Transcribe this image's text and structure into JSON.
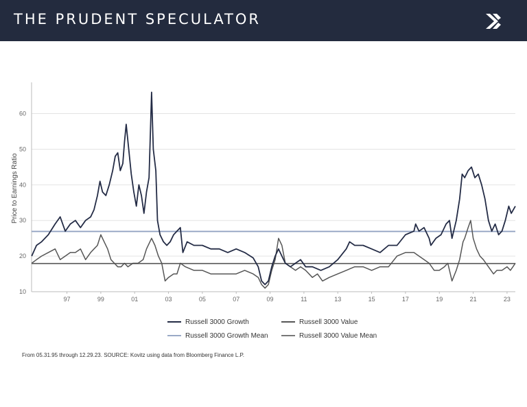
{
  "header": {
    "title": "THE PRUDENT SPECULATOR"
  },
  "logo": {
    "icon": "kovitz-logo-icon",
    "color": "#ffffff"
  },
  "footnote": "From 05.31.95 through 12.29.23. SOURCE: Kovitz using data from Bloomberg Finance L.P.",
  "colors": {
    "header_bg": "#232b3e",
    "growth": "#232b45",
    "growth_mean": "#9aa9c6",
    "value": "#555555",
    "value_mean": "#777777"
  },
  "chart_data": {
    "type": "line",
    "title": "",
    "ylabel": "Price to Earnings Ratio",
    "xlabel": "",
    "xlim": [
      1995.41,
      2023.99
    ],
    "ylim": [
      10,
      68
    ],
    "yticks": [
      10,
      20,
      30,
      40,
      50,
      60
    ],
    "xticks": [
      "97",
      "99",
      "01",
      "03",
      "05",
      "07",
      "09",
      "11",
      "13",
      "15",
      "17",
      "19",
      "21",
      "23"
    ],
    "grid": "horizontal",
    "legend_position": "bottom",
    "series": [
      {
        "name": "Russell 3000 Growth",
        "color": "#232b45",
        "points": [
          [
            1995.42,
            20
          ],
          [
            1995.7,
            23
          ],
          [
            1996.0,
            24
          ],
          [
            1996.4,
            26
          ],
          [
            1996.8,
            29
          ],
          [
            1997.1,
            31
          ],
          [
            1997.4,
            27
          ],
          [
            1997.7,
            29
          ],
          [
            1998.0,
            30
          ],
          [
            1998.3,
            28
          ],
          [
            1998.6,
            30
          ],
          [
            1998.9,
            31
          ],
          [
            1999.1,
            33
          ],
          [
            1999.3,
            37
          ],
          [
            1999.45,
            41
          ],
          [
            1999.6,
            38
          ],
          [
            1999.8,
            37
          ],
          [
            2000.0,
            40
          ],
          [
            2000.2,
            44
          ],
          [
            2000.35,
            48
          ],
          [
            2000.5,
            49
          ],
          [
            2000.65,
            44
          ],
          [
            2000.8,
            46
          ],
          [
            2000.9,
            52
          ],
          [
            2001.0,
            57
          ],
          [
            2001.15,
            50
          ],
          [
            2001.3,
            43
          ],
          [
            2001.45,
            38
          ],
          [
            2001.6,
            34
          ],
          [
            2001.75,
            40
          ],
          [
            2001.9,
            37
          ],
          [
            2002.05,
            32
          ],
          [
            2002.2,
            38
          ],
          [
            2002.35,
            42
          ],
          [
            2002.5,
            66
          ],
          [
            2002.6,
            50
          ],
          [
            2002.75,
            44
          ],
          [
            2002.85,
            30
          ],
          [
            2003.0,
            26
          ],
          [
            2003.2,
            24
          ],
          [
            2003.4,
            23
          ],
          [
            2003.6,
            24
          ],
          [
            2003.8,
            26
          ],
          [
            2004.0,
            27
          ],
          [
            2004.2,
            28
          ],
          [
            2004.35,
            21
          ],
          [
            2004.6,
            24
          ],
          [
            2005.0,
            23
          ],
          [
            2005.5,
            23
          ],
          [
            2006.0,
            22
          ],
          [
            2006.5,
            22
          ],
          [
            2007.0,
            21
          ],
          [
            2007.5,
            22
          ],
          [
            2008.0,
            21
          ],
          [
            2008.5,
            19.5
          ],
          [
            2008.8,
            17
          ],
          [
            2009.0,
            13
          ],
          [
            2009.2,
            12
          ],
          [
            2009.4,
            13
          ],
          [
            2009.6,
            17
          ],
          [
            2009.8,
            20
          ],
          [
            2010.0,
            22
          ],
          [
            2010.2,
            20
          ],
          [
            2010.4,
            18
          ],
          [
            2010.7,
            17
          ],
          [
            2011.0,
            18
          ],
          [
            2011.3,
            19
          ],
          [
            2011.6,
            17
          ],
          [
            2012.0,
            17
          ],
          [
            2012.5,
            16
          ],
          [
            2013.0,
            17
          ],
          [
            2013.5,
            19
          ],
          [
            2014.0,
            22
          ],
          [
            2014.2,
            24
          ],
          [
            2014.5,
            23
          ],
          [
            2015.0,
            23
          ],
          [
            2015.5,
            22
          ],
          [
            2016.0,
            21
          ],
          [
            2016.5,
            23
          ],
          [
            2017.0,
            23
          ],
          [
            2017.5,
            26
          ],
          [
            2018.0,
            27
          ],
          [
            2018.1,
            29
          ],
          [
            2018.3,
            27
          ],
          [
            2018.6,
            28
          ],
          [
            2018.9,
            25
          ],
          [
            2019.0,
            23
          ],
          [
            2019.3,
            25
          ],
          [
            2019.6,
            26
          ],
          [
            2019.9,
            29
          ],
          [
            2020.1,
            30
          ],
          [
            2020.25,
            25
          ],
          [
            2020.5,
            30
          ],
          [
            2020.7,
            36
          ],
          [
            2020.85,
            43
          ],
          [
            2021.0,
            42
          ],
          [
            2021.2,
            44
          ],
          [
            2021.4,
            45
          ],
          [
            2021.6,
            42
          ],
          [
            2021.8,
            43
          ],
          [
            2022.0,
            40
          ],
          [
            2022.2,
            36
          ],
          [
            2022.4,
            30
          ],
          [
            2022.6,
            27
          ],
          [
            2022.8,
            29
          ],
          [
            2023.0,
            26
          ],
          [
            2023.2,
            27
          ],
          [
            2023.4,
            30
          ],
          [
            2023.6,
            34
          ],
          [
            2023.75,
            32
          ],
          [
            2023.99,
            34
          ]
        ]
      },
      {
        "name": "Russell 3000 Value",
        "color": "#555555",
        "points": [
          [
            1995.42,
            18
          ],
          [
            1995.7,
            19
          ],
          [
            1996.0,
            20
          ],
          [
            1996.4,
            21
          ],
          [
            1996.8,
            22
          ],
          [
            1997.1,
            19
          ],
          [
            1997.4,
            20
          ],
          [
            1997.7,
            21
          ],
          [
            1998.0,
            21
          ],
          [
            1998.3,
            22
          ],
          [
            1998.6,
            19
          ],
          [
            1998.9,
            21
          ],
          [
            1999.1,
            22
          ],
          [
            1999.3,
            23
          ],
          [
            1999.5,
            26
          ],
          [
            1999.7,
            24
          ],
          [
            1999.9,
            22
          ],
          [
            2000.1,
            19
          ],
          [
            2000.3,
            18
          ],
          [
            2000.5,
            17
          ],
          [
            2000.7,
            17
          ],
          [
            2000.9,
            18
          ],
          [
            2001.1,
            17
          ],
          [
            2001.4,
            18
          ],
          [
            2001.7,
            18
          ],
          [
            2002.0,
            19
          ],
          [
            2002.2,
            22
          ],
          [
            2002.5,
            25
          ],
          [
            2002.7,
            23
          ],
          [
            2002.9,
            20
          ],
          [
            2003.1,
            18
          ],
          [
            2003.3,
            13
          ],
          [
            2003.5,
            14
          ],
          [
            2003.8,
            15
          ],
          [
            2004.0,
            15
          ],
          [
            2004.2,
            18
          ],
          [
            2004.5,
            17
          ],
          [
            2005.0,
            16
          ],
          [
            2005.5,
            16
          ],
          [
            2006.0,
            15
          ],
          [
            2006.5,
            15
          ],
          [
            2007.0,
            15
          ],
          [
            2007.5,
            15
          ],
          [
            2008.0,
            16
          ],
          [
            2008.5,
            15
          ],
          [
            2008.8,
            14
          ],
          [
            2009.0,
            12
          ],
          [
            2009.2,
            11
          ],
          [
            2009.4,
            12
          ],
          [
            2009.6,
            16
          ],
          [
            2009.8,
            19
          ],
          [
            2010.0,
            25
          ],
          [
            2010.2,
            23
          ],
          [
            2010.4,
            18
          ],
          [
            2010.7,
            17
          ],
          [
            2011.0,
            16
          ],
          [
            2011.3,
            17
          ],
          [
            2011.6,
            16
          ],
          [
            2012.0,
            14
          ],
          [
            2012.3,
            15
          ],
          [
            2012.6,
            13
          ],
          [
            2013.0,
            14
          ],
          [
            2013.5,
            15
          ],
          [
            2014.0,
            16
          ],
          [
            2014.5,
            17
          ],
          [
            2015.0,
            17
          ],
          [
            2015.5,
            16
          ],
          [
            2016.0,
            17
          ],
          [
            2016.5,
            17
          ],
          [
            2017.0,
            20
          ],
          [
            2017.5,
            21
          ],
          [
            2018.0,
            21
          ],
          [
            2018.3,
            20
          ],
          [
            2018.6,
            19
          ],
          [
            2018.9,
            18
          ],
          [
            2019.2,
            16
          ],
          [
            2019.5,
            16
          ],
          [
            2019.8,
            17
          ],
          [
            2020.0,
            18
          ],
          [
            2020.25,
            13
          ],
          [
            2020.5,
            16
          ],
          [
            2020.7,
            19
          ],
          [
            2020.9,
            24
          ],
          [
            2021.0,
            25
          ],
          [
            2021.2,
            28
          ],
          [
            2021.35,
            30
          ],
          [
            2021.5,
            25
          ],
          [
            2021.7,
            22
          ],
          [
            2021.9,
            20
          ],
          [
            2022.1,
            19
          ],
          [
            2022.4,
            17
          ],
          [
            2022.7,
            15
          ],
          [
            2022.9,
            16
          ],
          [
            2023.2,
            16
          ],
          [
            2023.5,
            17
          ],
          [
            2023.7,
            16
          ],
          [
            2023.85,
            17
          ],
          [
            2023.99,
            18
          ]
        ]
      }
    ],
    "means": [
      {
        "name": "Russell 3000 Growth Mean",
        "value": 26.9,
        "color": "#9aa9c6"
      },
      {
        "name": "Russell 3000 Value Mean",
        "value": 17.9,
        "color": "#777777"
      }
    ]
  }
}
